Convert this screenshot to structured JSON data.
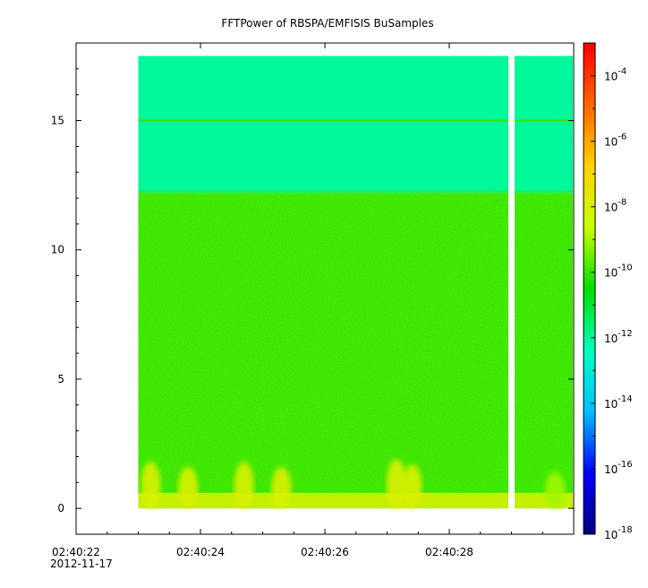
{
  "chart_data": {
    "type": "heatmap",
    "title": "FFTPower of RBSPA/EMFISIS  BuSamples",
    "xlabel": "",
    "ylabel": "",
    "x_axis": {
      "type": "time",
      "range": [
        "02:40:22",
        "02:40:30.0"
      ],
      "ticks": [
        "02:40:22",
        "02:40:24",
        "02:40:26",
        "02:40:28"
      ],
      "date_label": "2012-11-17"
    },
    "y_axis": {
      "range": [
        -1,
        18
      ],
      "ticks": [
        0,
        5,
        10,
        15
      ]
    },
    "data_extent": {
      "x_start": "02:40:23.0",
      "x_end": "02:40:30.0",
      "y_min": 0,
      "y_max": 17.5
    },
    "gap": {
      "x_start": "02:40:28.95",
      "x_end": "02:40:29.05"
    },
    "colorbar": {
      "scale": "log",
      "range": [
        1e-18,
        0.001
      ],
      "ticks": [
        {
          "base": "10",
          "exp": "-18"
        },
        {
          "base": "10",
          "exp": "-16"
        },
        {
          "base": "10",
          "exp": "-14"
        },
        {
          "base": "10",
          "exp": "-12"
        },
        {
          "base": "10",
          "exp": "-10"
        },
        {
          "base": "10",
          "exp": "-8"
        },
        {
          "base": "10",
          "exp": "-6"
        },
        {
          "base": "10",
          "exp": "-4"
        }
      ],
      "colormap": [
        "#00007f",
        "#0000ff",
        "#00bfff",
        "#00ffc0",
        "#00dd00",
        "#c8ff00",
        "#ffd200",
        "#ff6400",
        "#ff0000"
      ]
    },
    "features": {
      "upper_band_level": "1e-12",
      "lower_band_level": "1e-10",
      "band_boundary_y": 12.2,
      "line_at_y": 15,
      "line_level": "1e-10",
      "bottom_band_level": "1e-8",
      "bursts": [
        {
          "t": "02:40:23.2",
          "y_top": 1.8,
          "level": "1e-8"
        },
        {
          "t": "02:40:23.8",
          "y_top": 1.6,
          "level": "1e-8"
        },
        {
          "t": "02:40:24.7",
          "y_top": 1.8,
          "level": "1e-8"
        },
        {
          "t": "02:40:25.3",
          "y_top": 1.6,
          "level": "1e-8"
        },
        {
          "t": "02:40:27.15",
          "y_top": 1.9,
          "level": "1e-8"
        },
        {
          "t": "02:40:27.4",
          "y_top": 1.7,
          "level": "1e-8"
        },
        {
          "t": "02:40:29.7",
          "y_top": 1.4,
          "level": "1e-9"
        }
      ]
    }
  }
}
